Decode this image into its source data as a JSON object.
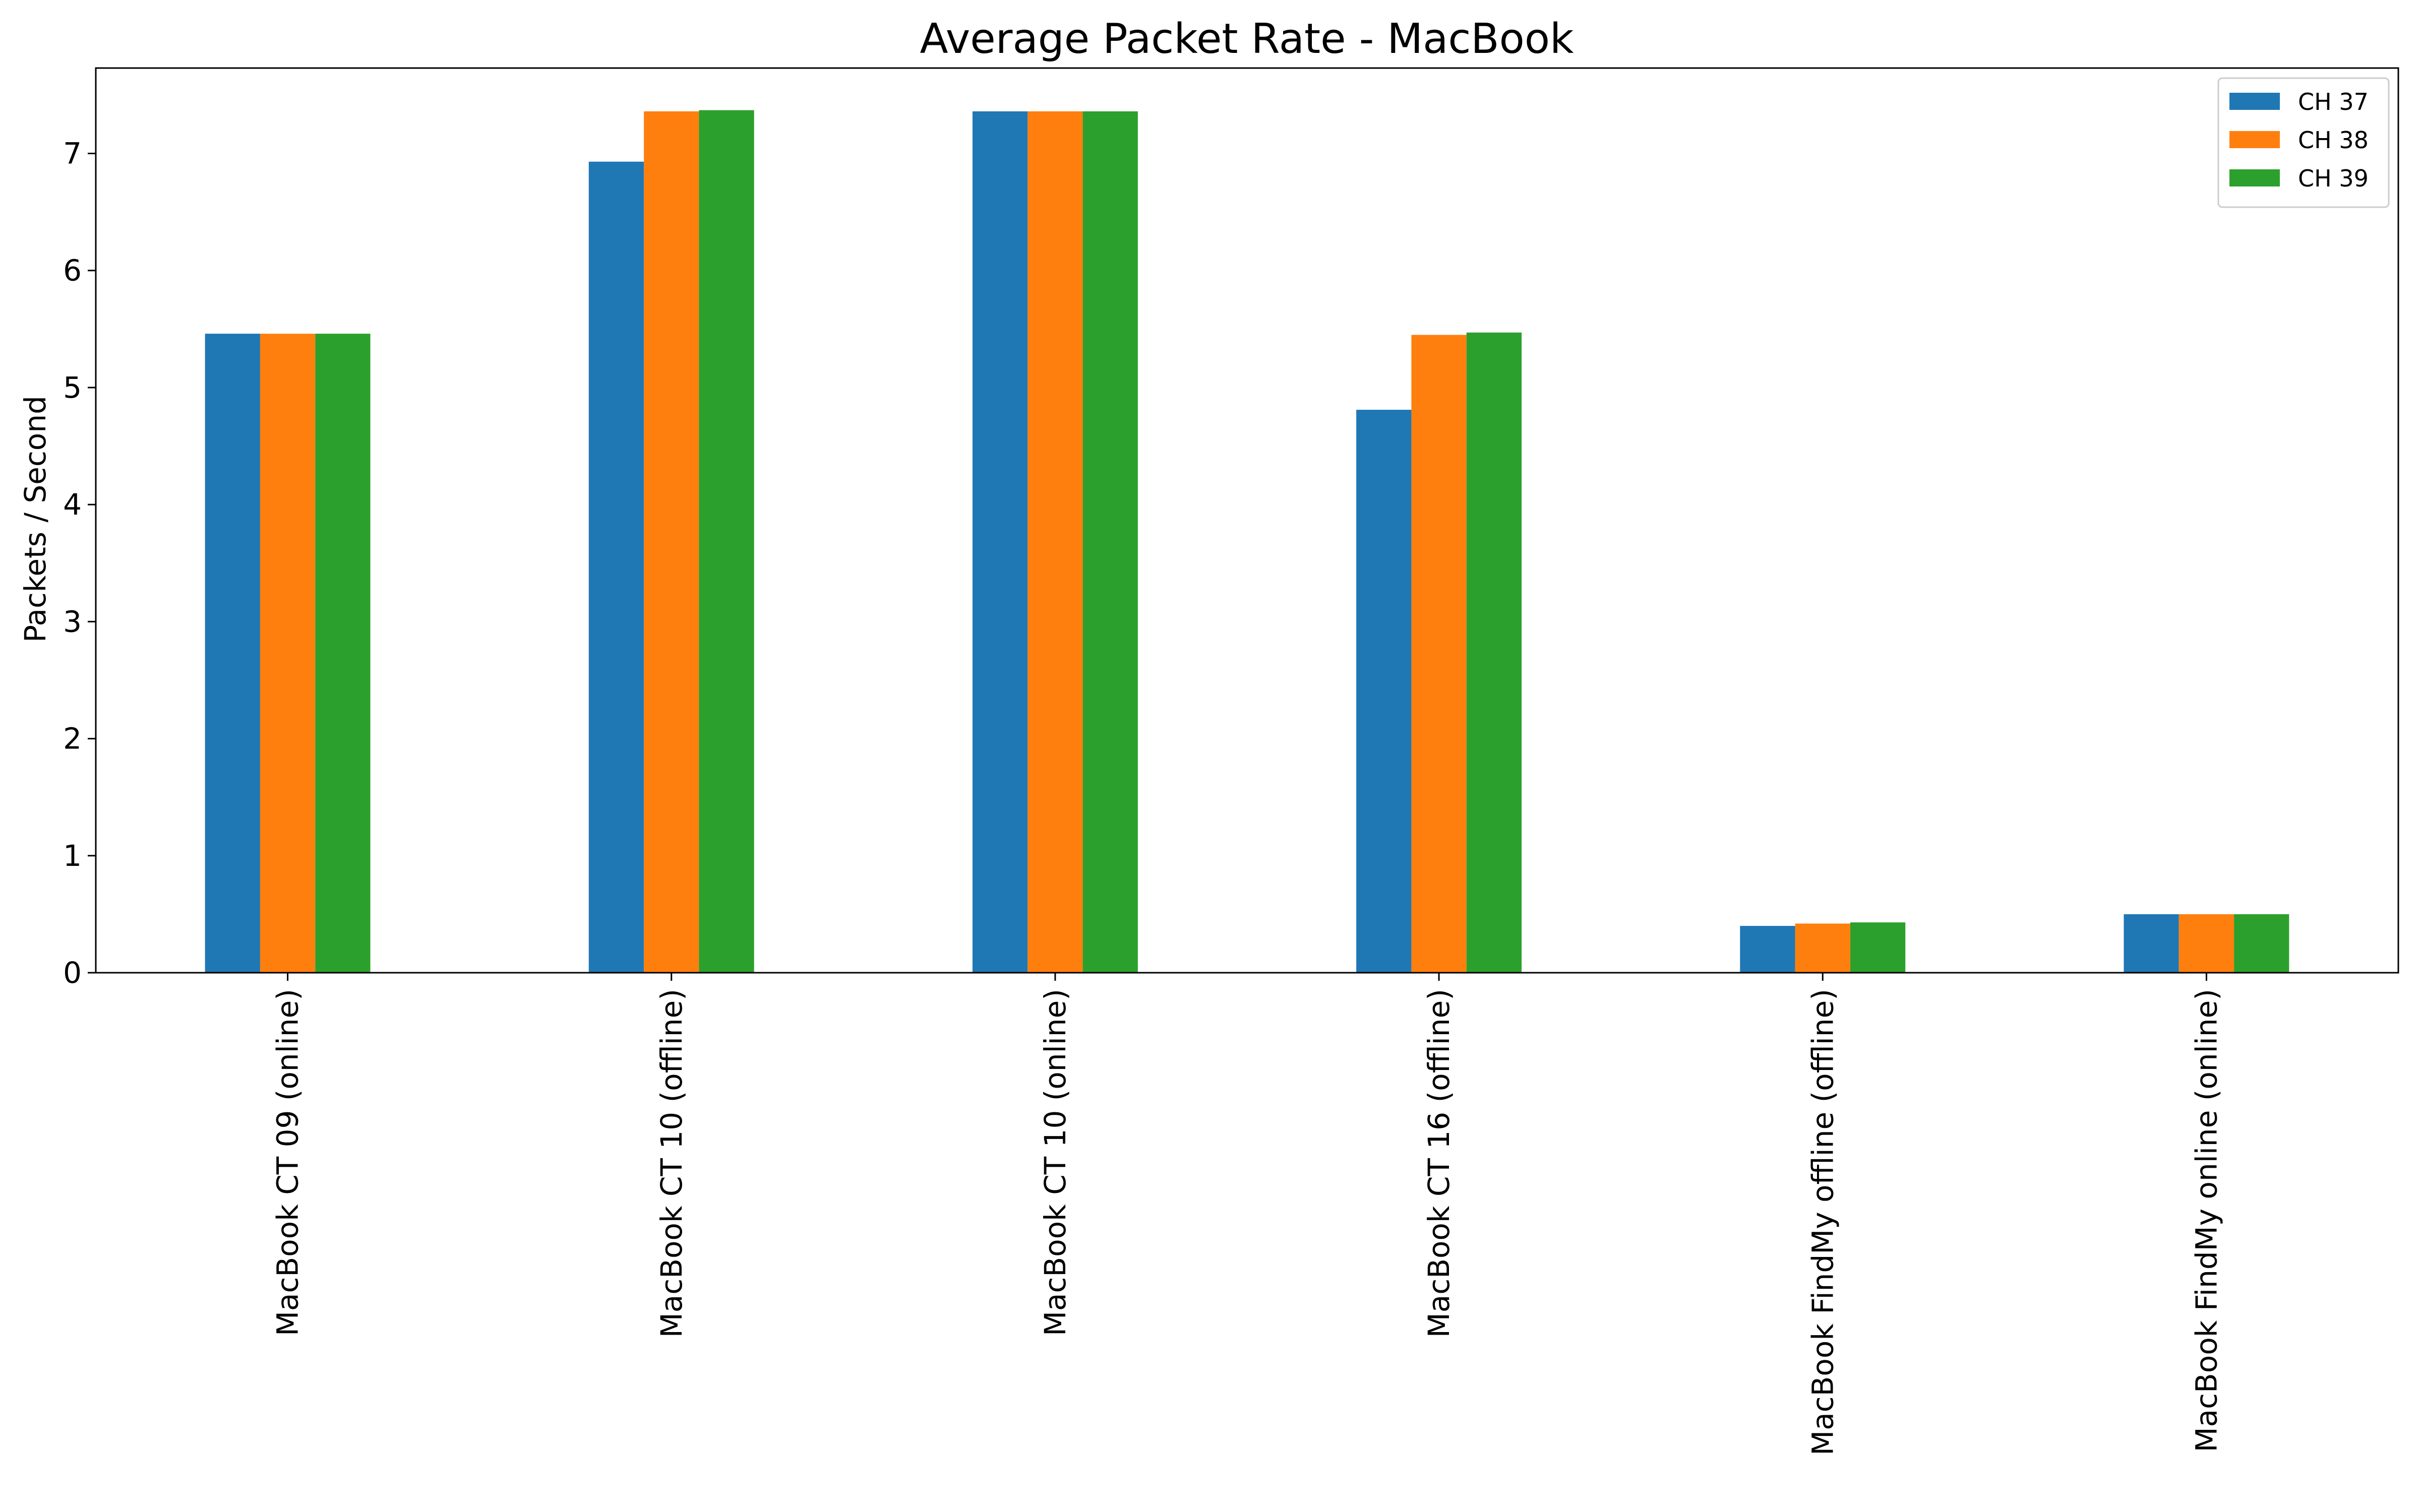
{
  "chart_data": {
    "type": "bar",
    "title": "Average Packet Rate - MacBook",
    "xlabel": "",
    "ylabel": "Packets / Second",
    "categories": [
      "MacBook CT 09 (online)",
      "MacBook CT 10 (offline)",
      "MacBook CT 10 (online)",
      "MacBook CT 16 (offline)",
      "MacBook FindMy offline (offline)",
      "MacBook FindMy online (online)"
    ],
    "series": [
      {
        "name": "CH 37",
        "color": "#1f77b4",
        "values": [
          5.46,
          6.93,
          7.36,
          4.81,
          0.4,
          0.5
        ]
      },
      {
        "name": "CH 38",
        "color": "#ff7f0e",
        "values": [
          5.46,
          7.36,
          7.36,
          5.45,
          0.42,
          0.5
        ]
      },
      {
        "name": "CH 39",
        "color": "#2ca02c",
        "values": [
          5.46,
          7.37,
          7.36,
          5.47,
          0.43,
          0.5
        ]
      }
    ],
    "ylim": [
      0,
      7.73
    ],
    "yticks": [
      0,
      1,
      2,
      3,
      4,
      5,
      6,
      7
    ],
    "grid": false,
    "legend_position": "top-right"
  }
}
